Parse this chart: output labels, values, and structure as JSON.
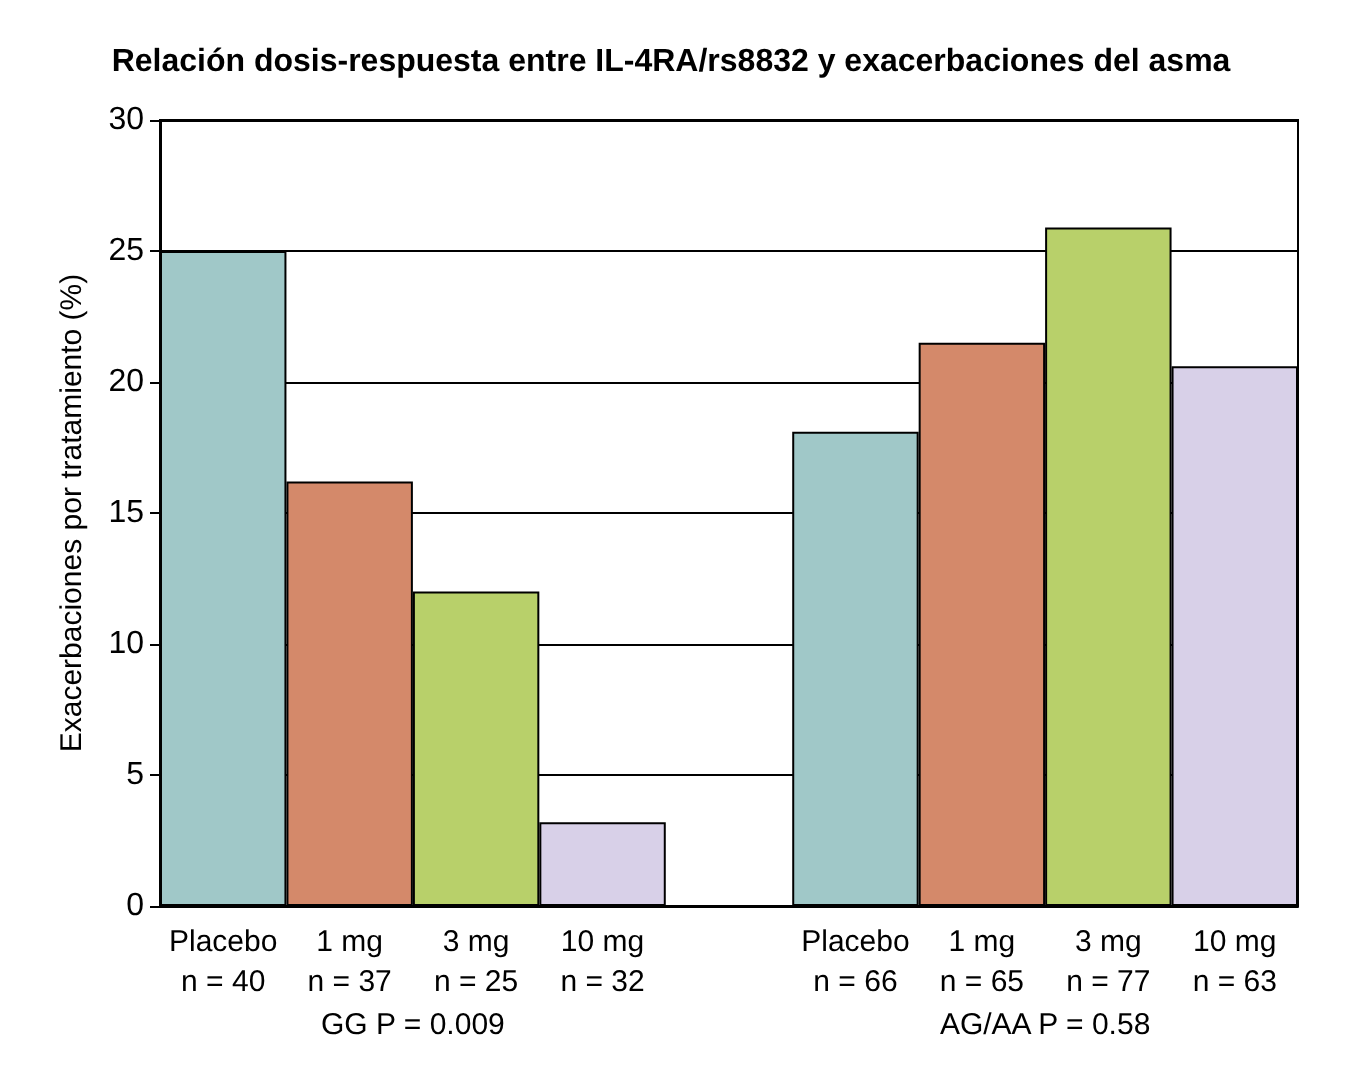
{
  "chart_data": {
    "type": "bar",
    "title": "Relación dosis-respuesta entre IL-4RA/rs8832 y exacerbaciones del asma",
    "ylabel": "Exacerbaciones por tratamiento (%)",
    "categories": [
      "Placebo\nn = 40",
      "1 mg\nn = 37",
      "3 mg\nn = 25",
      "10 mg\nn = 32",
      null,
      "Placebo\nn = 66",
      "1 mg\nn = 65",
      "3 mg\nn = 77",
      "10 mg\nn = 63"
    ],
    "values": [
      25,
      16.2,
      12,
      3.2,
      null,
      18.1,
      21.5,
      25.9,
      20.6
    ],
    "colors": [
      "#a0c8c8",
      "#d4896a",
      "#b8d06a",
      "#d8d0e8",
      null,
      "#a0c8c8",
      "#d4896a",
      "#b8d06a",
      "#d8d0e8"
    ],
    "ylim": [
      0,
      30
    ],
    "yticks": [
      0,
      5,
      10,
      15,
      20,
      25,
      30
    ],
    "grid": "y",
    "annotations": [
      "GG P = 0.009",
      "AG/AA P = 0.58"
    ]
  }
}
